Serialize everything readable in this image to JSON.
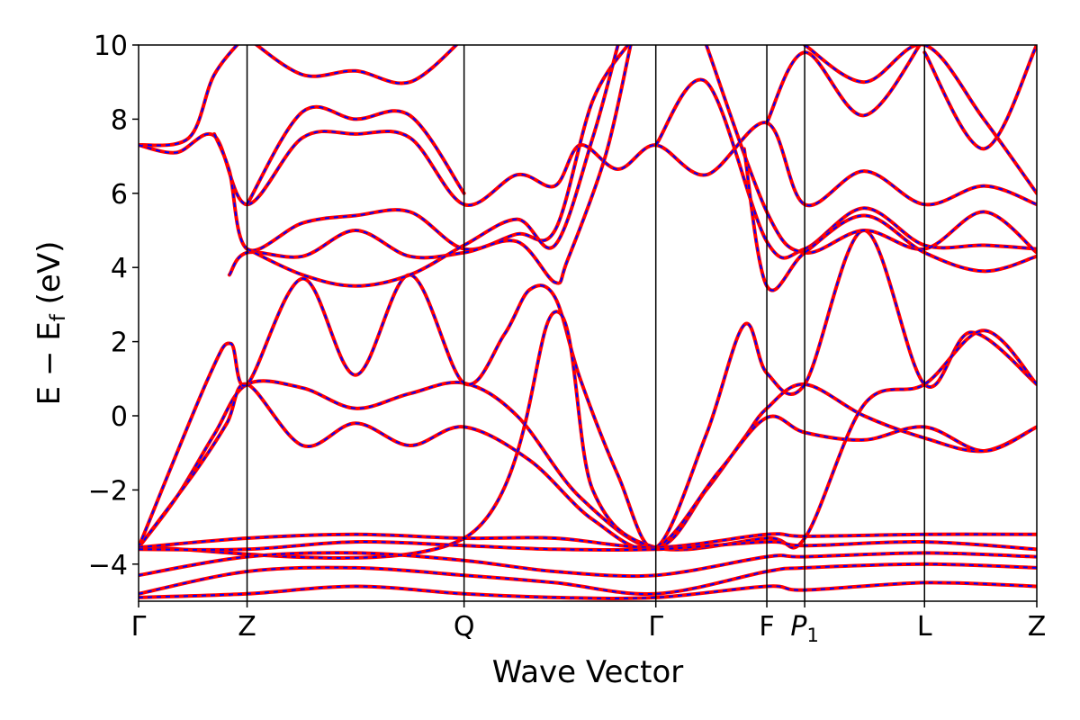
{
  "chart_data": {
    "type": "line",
    "xlabel": "Wave Vector",
    "ylabel": "E − E",
    "ylabel_sub": "f",
    "ylabel_unit": " (eV)",
    "ylim": [
      -5,
      10
    ],
    "yticks": [
      {
        "value": -4,
        "label": "−4"
      },
      {
        "value": -2,
        "label": "−2"
      },
      {
        "value": 0,
        "label": "0"
      },
      {
        "value": 2,
        "label": "2"
      },
      {
        "value": 4,
        "label": "4"
      },
      {
        "value": 6,
        "label": "6"
      },
      {
        "value": 8,
        "label": "8"
      },
      {
        "value": 10,
        "label": "10"
      }
    ],
    "xlim": [
      0,
      7.12
    ],
    "kpoints": [
      {
        "name": "Γ",
        "sub": "",
        "x": 0.0
      },
      {
        "name": "Z",
        "sub": "",
        "x": 0.86
      },
      {
        "name": "Q",
        "sub": "",
        "x": 2.58
      },
      {
        "name": "Γ",
        "sub": "",
        "x": 4.1
      },
      {
        "name": "F",
        "sub": "",
        "x": 4.98
      },
      {
        "name": "P",
        "sub": "1",
        "x": 5.28
      },
      {
        "name": "L",
        "sub": "",
        "x": 6.23
      },
      {
        "name": "Z",
        "sub": "",
        "x": 7.12
      }
    ],
    "series_style": {
      "primary_color": "#ff0000",
      "overlay_color": "#0000ff"
    },
    "bands": [
      [
        [
          0,
          -3.55
        ],
        [
          0.3,
          -2.2
        ],
        [
          0.6,
          -0.5
        ],
        [
          0.86,
          0.85
        ],
        [
          1.3,
          0.75
        ],
        [
          1.72,
          0.2
        ],
        [
          2.15,
          0.6
        ],
        [
          2.58,
          0.88
        ],
        [
          3.0,
          0.0
        ],
        [
          3.5,
          -2.2
        ],
        [
          4.1,
          -3.55
        ],
        [
          4.5,
          -2.0
        ],
        [
          4.8,
          -0.6
        ],
        [
          4.98,
          0.2
        ],
        [
          5.28,
          0.85
        ],
        [
          5.75,
          0.0
        ],
        [
          6.23,
          -0.6
        ],
        [
          6.7,
          -0.95
        ],
        [
          7.12,
          -0.3
        ]
      ],
      [
        [
          0,
          -3.55
        ],
        [
          0.45,
          -1.5
        ],
        [
          0.7,
          -0.2
        ],
        [
          0.86,
          0.85
        ],
        [
          1.3,
          -0.8
        ],
        [
          1.72,
          -0.2
        ],
        [
          2.15,
          -0.8
        ],
        [
          2.58,
          -0.3
        ],
        [
          3.1,
          -1.2
        ],
        [
          3.6,
          -2.8
        ],
        [
          4.1,
          -3.55
        ],
        [
          4.6,
          -1.5
        ],
        [
          4.98,
          -0.05
        ],
        [
          5.28,
          -0.45
        ],
        [
          5.75,
          -0.65
        ],
        [
          6.23,
          -0.3
        ],
        [
          6.7,
          -0.95
        ],
        [
          7.12,
          -0.3
        ]
      ],
      [
        [
          0,
          -3.55
        ],
        [
          0.55,
          1.0
        ],
        [
          0.73,
          1.95
        ],
        [
          0.86,
          0.85
        ],
        [
          1.3,
          3.7
        ],
        [
          1.72,
          1.1
        ],
        [
          2.15,
          3.8
        ],
        [
          2.58,
          0.88
        ],
        [
          2.9,
          2.2
        ],
        [
          3.1,
          3.4
        ],
        [
          3.3,
          3.2
        ],
        [
          3.5,
          1.0
        ],
        [
          3.8,
          -1.6
        ],
        [
          4.1,
          -3.55
        ],
        [
          4.5,
          -0.5
        ],
        [
          4.8,
          2.45
        ],
        [
          4.98,
          1.15
        ],
        [
          5.28,
          0.85
        ],
        [
          5.75,
          5.0
        ],
        [
          6.23,
          0.85
        ],
        [
          6.6,
          2.25
        ],
        [
          7.12,
          0.85
        ]
      ],
      [
        [
          0,
          -3.55
        ],
        [
          2.58,
          -3.3
        ],
        [
          3.3,
          2.8
        ],
        [
          3.6,
          -2.0
        ],
        [
          4.1,
          -3.55
        ],
        [
          4.98,
          -3.3
        ],
        [
          5.28,
          -3.3
        ],
        [
          5.75,
          0.3
        ],
        [
          6.23,
          0.85
        ],
        [
          6.7,
          2.3
        ],
        [
          7.12,
          0.85
        ]
      ],
      [
        [
          0,
          -3.55
        ],
        [
          0.86,
          -3.3
        ],
        [
          1.72,
          -3.2
        ],
        [
          2.58,
          -3.3
        ],
        [
          3.3,
          -3.3
        ],
        [
          4.1,
          -3.55
        ],
        [
          4.98,
          -3.2
        ],
        [
          5.28,
          -3.25
        ],
        [
          6.23,
          -3.2
        ],
        [
          7.12,
          -3.2
        ]
      ],
      [
        [
          0,
          -3.6
        ],
        [
          0.86,
          -3.6
        ],
        [
          1.72,
          -3.4
        ],
        [
          2.58,
          -3.5
        ],
        [
          3.3,
          -3.6
        ],
        [
          4.1,
          -3.6
        ],
        [
          4.98,
          -3.4
        ],
        [
          5.28,
          -3.5
        ],
        [
          6.23,
          -3.4
        ],
        [
          7.12,
          -3.6
        ]
      ],
      [
        [
          0,
          -4.3
        ],
        [
          0.86,
          -3.8
        ],
        [
          1.72,
          -3.7
        ],
        [
          2.58,
          -3.9
        ],
        [
          3.3,
          -4.2
        ],
        [
          4.1,
          -4.3
        ],
        [
          4.98,
          -3.8
        ],
        [
          5.28,
          -3.8
        ],
        [
          6.23,
          -3.7
        ],
        [
          7.12,
          -3.8
        ]
      ],
      [
        [
          0,
          -4.8
        ],
        [
          0.86,
          -4.2
        ],
        [
          1.72,
          -4.1
        ],
        [
          2.58,
          -4.3
        ],
        [
          3.3,
          -4.5
        ],
        [
          4.1,
          -4.8
        ],
        [
          4.98,
          -4.2
        ],
        [
          5.28,
          -4.1
        ],
        [
          6.23,
          -4.0
        ],
        [
          7.12,
          -4.1
        ]
      ],
      [
        [
          0,
          -4.9
        ],
        [
          0.86,
          -4.8
        ],
        [
          1.72,
          -4.6
        ],
        [
          2.58,
          -4.8
        ],
        [
          3.3,
          -4.9
        ],
        [
          4.1,
          -4.9
        ],
        [
          4.98,
          -4.6
        ],
        [
          5.28,
          -4.7
        ],
        [
          6.23,
          -4.5
        ],
        [
          7.12,
          -4.6
        ]
      ],
      [
        [
          0,
          7.3
        ],
        [
          0.4,
          7.5
        ],
        [
          0.6,
          9.2
        ],
        [
          0.86,
          10.3
        ]
      ],
      [
        [
          0,
          7.3
        ],
        [
          0.3,
          7.1
        ],
        [
          0.6,
          7.55
        ],
        [
          0.86,
          5.7
        ],
        [
          1.3,
          7.5
        ],
        [
          1.72,
          7.6
        ],
        [
          2.15,
          7.5
        ],
        [
          2.58,
          5.7
        ],
        [
          3.0,
          6.5
        ],
        [
          3.3,
          6.2
        ],
        [
          3.5,
          7.3
        ],
        [
          3.8,
          6.65
        ],
        [
          4.1,
          7.3
        ],
        [
          4.5,
          6.5
        ],
        [
          4.98,
          7.9
        ],
        [
          5.28,
          5.7
        ],
        [
          5.75,
          6.6
        ],
        [
          6.23,
          5.7
        ],
        [
          6.7,
          6.2
        ],
        [
          7.12,
          5.7
        ]
      ],
      [
        [
          0.6,
          7.6
        ],
        [
          0.72,
          6.6
        ],
        [
          0.86,
          4.5
        ],
        [
          1.3,
          5.2
        ],
        [
          1.72,
          5.4
        ],
        [
          2.15,
          5.5
        ],
        [
          2.58,
          4.5
        ],
        [
          3.0,
          4.9
        ],
        [
          3.3,
          5.0
        ],
        [
          3.6,
          8.5
        ],
        [
          3.9,
          10.1
        ]
      ],
      [
        [
          0.72,
          3.8
        ],
        [
          0.86,
          4.4
        ],
        [
          1.3,
          4.3
        ],
        [
          1.72,
          5.0
        ],
        [
          2.15,
          4.3
        ],
        [
          2.58,
          4.4
        ],
        [
          3.0,
          4.7
        ],
        [
          3.3,
          3.6
        ],
        [
          3.4,
          4.2
        ],
        [
          3.7,
          7.0
        ],
        [
          3.9,
          10.0
        ]
      ],
      [
        [
          0.86,
          4.5
        ],
        [
          1.3,
          3.8
        ],
        [
          1.72,
          3.5
        ],
        [
          2.15,
          3.8
        ],
        [
          2.58,
          4.6
        ],
        [
          3.0,
          5.3
        ],
        [
          3.3,
          4.6
        ],
        [
          3.6,
          7.5
        ],
        [
          3.8,
          10.0
        ]
      ],
      [
        [
          0.86,
          5.7
        ],
        [
          1.3,
          8.2
        ],
        [
          1.72,
          8.0
        ],
        [
          2.15,
          8.1
        ],
        [
          2.58,
          6.0
        ]
      ],
      [
        [
          0.86,
          10.2
        ],
        [
          1.3,
          9.2
        ],
        [
          1.72,
          9.3
        ],
        [
          2.15,
          9.0
        ],
        [
          2.58,
          10.2
        ]
      ],
      [
        [
          4.1,
          7.3
        ],
        [
          4.5,
          9.0
        ],
        [
          4.98,
          4.7
        ],
        [
          5.28,
          4.5
        ],
        [
          5.75,
          5.6
        ],
        [
          6.23,
          4.6
        ],
        [
          6.7,
          4.6
        ],
        [
          7.12,
          4.5
        ]
      ],
      [
        [
          4.5,
          10.0
        ],
        [
          4.98,
          5.5
        ],
        [
          5.28,
          4.4
        ],
        [
          5.75,
          5.0
        ],
        [
          6.23,
          4.5
        ],
        [
          6.7,
          5.5
        ],
        [
          7.12,
          4.4
        ]
      ],
      [
        [
          4.8,
          7.2
        ],
        [
          4.98,
          3.5
        ],
        [
          5.28,
          4.4
        ],
        [
          5.75,
          5.4
        ],
        [
          6.23,
          4.4
        ],
        [
          6.7,
          3.9
        ],
        [
          7.12,
          4.3
        ]
      ],
      [
        [
          4.98,
          7.9
        ],
        [
          5.28,
          9.8
        ],
        [
          5.75,
          8.1
        ],
        [
          6.23,
          10.2
        ]
      ],
      [
        [
          5.28,
          10.0
        ],
        [
          5.75,
          9.0
        ],
        [
          6.23,
          10.0
        ],
        [
          6.7,
          8.0
        ],
        [
          7.12,
          6.0
        ]
      ],
      [
        [
          6.23,
          9.8
        ],
        [
          6.7,
          7.2
        ],
        [
          7.12,
          10.0
        ]
      ]
    ]
  }
}
